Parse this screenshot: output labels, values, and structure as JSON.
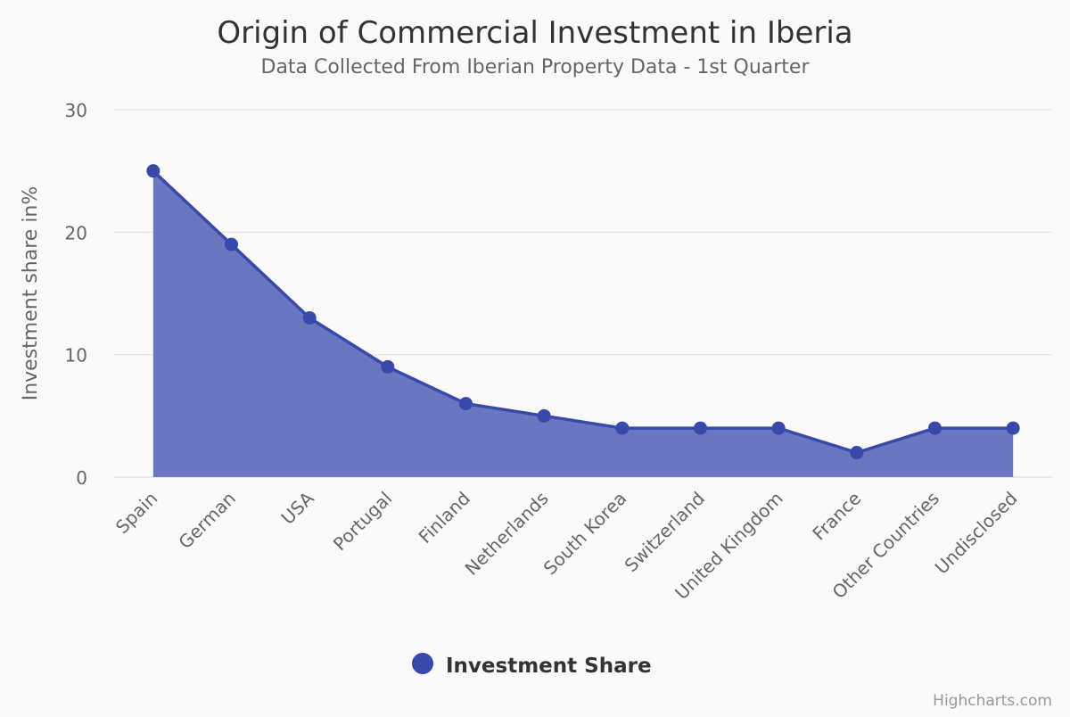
{
  "chart_data": {
    "type": "area",
    "title": "Origin of Commercial Investment in Iberia",
    "subtitle": "Data Collected From Iberian Property Data - 1st Quarter",
    "xlabel": "",
    "ylabel": "Investment share in%",
    "categories": [
      "Spain",
      "German",
      "USA",
      "Portugal",
      "Finland",
      "Netherlands",
      "South Korea",
      "Switzerland",
      "United Kingdom",
      "France",
      "Other Countries",
      "Undisclosed"
    ],
    "series": [
      {
        "name": "Investment Share",
        "values": [
          25,
          19,
          13,
          9,
          6,
          5,
          4,
          4,
          4,
          2,
          4,
          4
        ],
        "color": "#3949ab",
        "fill": "#6a76c0"
      }
    ],
    "ylim": [
      0,
      30
    ],
    "yticks": [
      0,
      10,
      20,
      30
    ],
    "grid": true,
    "legend": "bottom-center",
    "credits": "Highcharts.com"
  }
}
